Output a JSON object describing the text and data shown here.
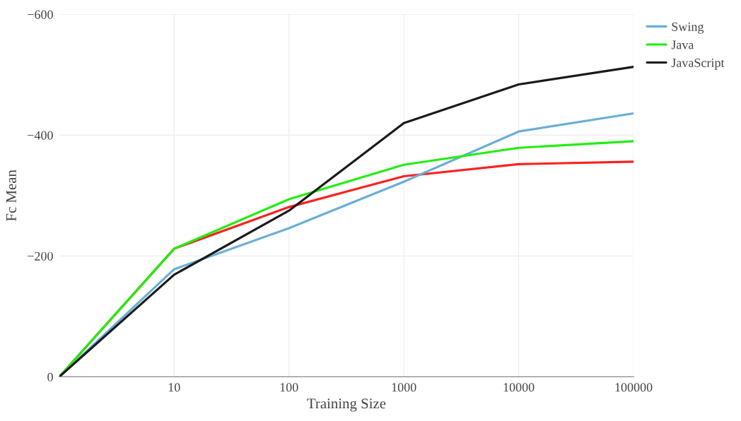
{
  "chart_data": {
    "type": "line",
    "xlabel": "Training Size",
    "ylabel": "Fc Mean",
    "x": [
      1,
      10,
      100,
      1000,
      10000,
      100000
    ],
    "series": [
      {
        "color": "#ff2020",
        "values": [
          0,
          -212,
          -281,
          -332,
          -352,
          -356
        ]
      },
      {
        "name": "Swing",
        "color": "#6aaed6",
        "values": [
          0,
          -178,
          -246,
          -323,
          -406,
          -436
        ]
      },
      {
        "name": "Java",
        "color": "#22ee11",
        "values": [
          0,
          -212,
          -294,
          -351,
          -379,
          -390
        ]
      },
      {
        "name": "JavaScript",
        "color": "#1a1a1a",
        "values": [
          0,
          -169,
          -275,
          -420,
          -484,
          -513
        ]
      }
    ],
    "log": "x",
    "xlim": [
      1,
      100000
    ],
    "xticks": [
      10,
      100,
      1000,
      10000,
      100000
    ],
    "ylim": [
      0,
      -600
    ],
    "yticks": [
      {
        "value": -600,
        "label": "−600"
      },
      {
        "value": -400,
        "label": "−400"
      },
      {
        "value": -200,
        "label": "−200"
      },
      0
    ],
    "grid": true,
    "legend": "top right",
    "marker": "none",
    "line_style": "solid"
  }
}
